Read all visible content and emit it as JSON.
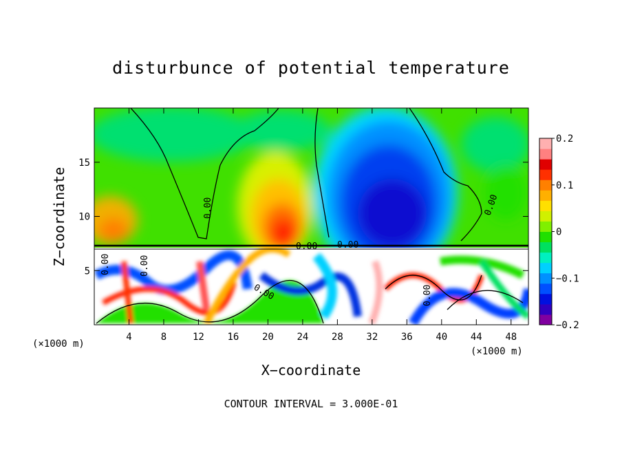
{
  "chart_data": {
    "type": "heatmap",
    "title": "disturbunce of potential temperature",
    "xlabel": "X−coordinate",
    "ylabel": "Z−coordinate",
    "x_unit": "(×1000 m)",
    "xlim": [
      0,
      50
    ],
    "ylim": [
      0,
      20
    ],
    "x_ticks": [
      4,
      8,
      12,
      16,
      20,
      24,
      28,
      32,
      36,
      40,
      44,
      48
    ],
    "y_ticks": [
      5,
      10,
      15
    ],
    "colorbar": {
      "range": [
        -0.2,
        0.2
      ],
      "tick_labels": [
        "0.2",
        "0.1",
        "0",
        "−0.1",
        "−0.2"
      ],
      "tick_values": [
        0.2,
        0.1,
        0,
        -0.1,
        -0.2
      ],
      "colors": [
        "#8000a0",
        "#3000c0",
        "#0010e0",
        "#0050ff",
        "#0090ff",
        "#00d0ff",
        "#00f0c0",
        "#00e060",
        "#20e000",
        "#80f000",
        "#d0f000",
        "#ffe000",
        "#ffb000",
        "#ff8000",
        "#ff3000",
        "#e00000",
        "#ff8080",
        "#ffb0b0"
      ]
    },
    "contour_labels": [
      "0.00",
      "0.00",
      "0.00",
      "0.00",
      "0.00",
      "0.00",
      "0.00",
      "0.00",
      "0.00"
    ],
    "footer": "CONTOUR INTERVAL = 3.000E-01"
  }
}
